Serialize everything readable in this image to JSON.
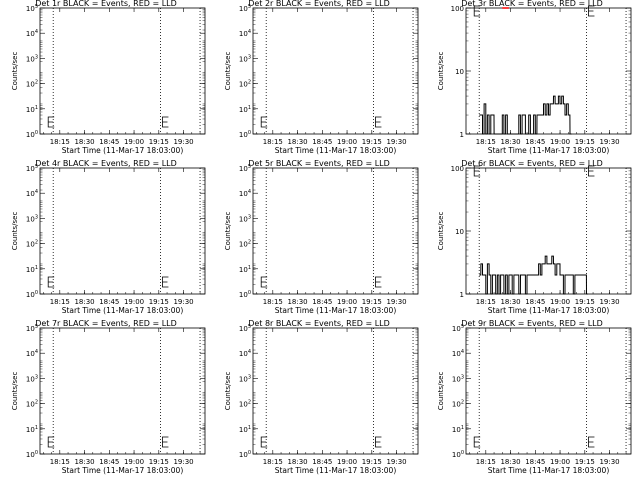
{
  "colors": {
    "background": "#ffffff",
    "axes": "#000000",
    "events": "#000000",
    "lld": "#ff0000"
  },
  "panel_common": {
    "ylabel": "Counts/sec",
    "xlabel": "Start Time (11-Mar-17 18:03:00)",
    "xticks": [
      "18:15",
      "18:30",
      "18:45",
      "19:00",
      "19:15",
      "19:30"
    ]
  },
  "chart_data": [
    {
      "type": "line",
      "title": "Det 1r BLACK = Events, RED = LLD",
      "xlabel": "Start Time (11-Mar-17 18:03:00)",
      "ylabel": "Counts/sec",
      "xlim": [
        "18:03",
        "19:43"
      ],
      "ylim": [
        1,
        10000
      ],
      "yscale": "log",
      "yticks": [
        "10^0",
        "10^1",
        "10^2",
        "10^3",
        "10^4",
        "10^5"
      ],
      "xticks": [
        "18:15",
        "18:30",
        "18:45",
        "19:00",
        "19:15",
        "19:30"
      ],
      "vlines": [
        "18:11",
        "19:16",
        "19:40"
      ],
      "series": [
        {
          "color": "#000000",
          "x": [],
          "values": []
        },
        {
          "color": "#ff0000",
          "x": [],
          "values": []
        }
      ]
    },
    {
      "type": "line",
      "title": "Det 2r BLACK = Events, RED = LLD",
      "xlabel": "Start Time (11-Mar-17 18:03:00)",
      "ylabel": "Counts/sec",
      "xlim": [
        "18:03",
        "19:43"
      ],
      "ylim": [
        1,
        10000
      ],
      "yscale": "log",
      "yticks": [
        "10^0",
        "10^1",
        "10^2",
        "10^3",
        "10^4",
        "10^5"
      ],
      "xticks": [
        "18:15",
        "18:30",
        "18:45",
        "19:00",
        "19:15",
        "19:30"
      ],
      "vlines": [
        "18:11",
        "19:16",
        "19:40"
      ],
      "series": [
        {
          "color": "#000000",
          "x": [],
          "values": []
        },
        {
          "color": "#ff0000",
          "x": [],
          "values": []
        }
      ]
    },
    {
      "type": "line",
      "title": "Det 3r BLACK = Events, RED = LLD",
      "xlabel": "Start Time (11-Mar-17 18:03:00)",
      "ylabel": "Counts/sec",
      "xlim": [
        "18:03",
        "19:43"
      ],
      "ylim": [
        1,
        100
      ],
      "yscale": "log",
      "yticks": [
        "1",
        "10",
        "100"
      ],
      "xticks": [
        "18:15",
        "18:30",
        "18:45",
        "19:00",
        "19:15",
        "19:30"
      ],
      "vlines": [
        "18:11",
        "19:16",
        "19:40"
      ],
      "series": [
        {
          "color": "#000000",
          "x": [
            "18:11",
            "18:12",
            "18:13",
            "18:14",
            "18:15",
            "18:16",
            "18:17",
            "18:18",
            "18:19",
            "18:20",
            "18:24",
            "18:25",
            "18:26",
            "18:27",
            "18:28",
            "18:34",
            "18:35",
            "18:36",
            "18:37",
            "18:38",
            "18:39",
            "18:40",
            "18:41",
            "18:42",
            "18:43",
            "18:44",
            "18:45",
            "18:46",
            "18:47",
            "18:48",
            "18:49",
            "18:50",
            "18:51",
            "18:52",
            "18:53",
            "18:54",
            "18:55",
            "18:56",
            "18:57",
            "18:58",
            "18:59",
            "19:00",
            "19:01",
            "19:02",
            "19:03",
            "19:04",
            "19:05",
            "19:06"
          ],
          "values": [
            2,
            2,
            1,
            3,
            1,
            2,
            1,
            2,
            2,
            1,
            1,
            2,
            1,
            2,
            1,
            1,
            2,
            1,
            2,
            2,
            1,
            1,
            2,
            1,
            1,
            2,
            1,
            2,
            2,
            2,
            2,
            3,
            2,
            3,
            2,
            3,
            3,
            4,
            3,
            3,
            4,
            3,
            4,
            3,
            2,
            3,
            2,
            1
          ]
        },
        {
          "color": "#ff0000",
          "x": [
            "18:25",
            "18:26",
            "18:27",
            "18:28"
          ],
          "values": [
            100,
            100,
            100,
            100
          ]
        }
      ]
    },
    {
      "type": "line",
      "title": "Det 4r BLACK = Events, RED = LLD",
      "xlabel": "Start Time (11-Mar-17 18:03:00)",
      "ylabel": "Counts/sec",
      "xlim": [
        "18:03",
        "19:43"
      ],
      "ylim": [
        1,
        10000
      ],
      "yscale": "log",
      "yticks": [
        "10^0",
        "10^1",
        "10^2",
        "10^3",
        "10^4",
        "10^5"
      ],
      "xticks": [
        "18:15",
        "18:30",
        "18:45",
        "19:00",
        "19:15",
        "19:30"
      ],
      "vlines": [
        "18:11",
        "19:16",
        "19:40"
      ],
      "series": [
        {
          "color": "#000000",
          "x": [],
          "values": []
        },
        {
          "color": "#ff0000",
          "x": [],
          "values": []
        }
      ]
    },
    {
      "type": "line",
      "title": "Det 5r BLACK = Events, RED = LLD",
      "xlabel": "Start Time (11-Mar-17 18:03:00)",
      "ylabel": "Counts/sec",
      "xlim": [
        "18:03",
        "19:43"
      ],
      "ylim": [
        1,
        10000
      ],
      "yscale": "log",
      "yticks": [
        "10^0",
        "10^1",
        "10^2",
        "10^3",
        "10^4",
        "10^5"
      ],
      "xticks": [
        "18:15",
        "18:30",
        "18:45",
        "19:00",
        "19:15",
        "19:30"
      ],
      "vlines": [
        "18:11",
        "19:16",
        "19:40"
      ],
      "series": [
        {
          "color": "#000000",
          "x": [],
          "values": []
        },
        {
          "color": "#ff0000",
          "x": [],
          "values": []
        }
      ]
    },
    {
      "type": "line",
      "title": "Det 6r BLACK = Events, RED = LLD",
      "xlabel": "Start Time (11-Mar-17 18:03:00)",
      "ylabel": "Counts/sec",
      "xlim": [
        "18:03",
        "19:43"
      ],
      "ylim": [
        1,
        100
      ],
      "yscale": "log",
      "yticks": [
        "1",
        "10",
        "100"
      ],
      "xticks": [
        "18:15",
        "18:30",
        "18:45",
        "19:00",
        "19:15",
        "19:30"
      ],
      "vlines": [
        "18:11",
        "19:16",
        "19:40"
      ],
      "series": [
        {
          "color": "#000000",
          "x": [
            "18:11",
            "18:12",
            "18:13",
            "18:14",
            "18:15",
            "18:16",
            "18:17",
            "18:18",
            "18:19",
            "18:20",
            "18:21",
            "18:22",
            "18:23",
            "18:24",
            "18:25",
            "18:26",
            "18:27",
            "18:28",
            "18:29",
            "18:30",
            "18:31",
            "18:32",
            "18:33",
            "18:34",
            "18:35",
            "18:36",
            "18:37",
            "18:38",
            "18:39",
            "18:40",
            "18:41",
            "18:42",
            "18:43",
            "18:44",
            "18:45",
            "18:46",
            "18:47",
            "18:48",
            "18:49",
            "18:50",
            "18:51",
            "18:52",
            "18:53",
            "18:54",
            "18:55",
            "18:56",
            "18:57",
            "18:58",
            "18:59",
            "19:00",
            "19:01",
            "19:02",
            "19:03",
            "19:04",
            "19:05",
            "19:06",
            "19:07",
            "19:08",
            "19:09",
            "19:10",
            "19:11",
            "19:12",
            "19:13",
            "19:14",
            "19:15",
            "19:16"
          ],
          "values": [
            2,
            3,
            2,
            2,
            1,
            3,
            2,
            1,
            2,
            2,
            1,
            2,
            1,
            2,
            2,
            1,
            2,
            1,
            2,
            2,
            1,
            2,
            2,
            2,
            1,
            2,
            2,
            2,
            1,
            2,
            2,
            2,
            2,
            2,
            2,
            2,
            3,
            2,
            3,
            3,
            4,
            3,
            3,
            3,
            4,
            3,
            2,
            3,
            3,
            2,
            2,
            1,
            2,
            2,
            2,
            2,
            2,
            1,
            2,
            2,
            2,
            2,
            2,
            2,
            2,
            1
          ]
        },
        {
          "color": "#ff0000",
          "x": [],
          "values": []
        }
      ]
    },
    {
      "type": "line",
      "title": "Det 7r BLACK = Events, RED = LLD",
      "xlabel": "Start Time (11-Mar-17 18:03:00)",
      "ylabel": "Counts/sec",
      "xlim": [
        "18:03",
        "19:43"
      ],
      "ylim": [
        1,
        10000
      ],
      "yscale": "log",
      "yticks": [
        "10^0",
        "10^1",
        "10^2",
        "10^3",
        "10^4",
        "10^5"
      ],
      "xticks": [
        "18:15",
        "18:30",
        "18:45",
        "19:00",
        "19:15",
        "19:30"
      ],
      "vlines": [
        "18:11",
        "19:16",
        "19:40"
      ],
      "series": [
        {
          "color": "#000000",
          "x": [],
          "values": []
        },
        {
          "color": "#ff0000",
          "x": [],
          "values": []
        }
      ]
    },
    {
      "type": "line",
      "title": "Det 8r BLACK = Events, RED = LLD",
      "xlabel": "Start Time (11-Mar-17 18:03:00)",
      "ylabel": "Counts/sec",
      "xlim": [
        "18:03",
        "19:43"
      ],
      "ylim": [
        1,
        10000
      ],
      "yscale": "log",
      "yticks": [
        "10^0",
        "10^1",
        "10^2",
        "10^3",
        "10^4",
        "10^5"
      ],
      "xticks": [
        "18:15",
        "18:30",
        "18:45",
        "19:00",
        "19:15",
        "19:30"
      ],
      "vlines": [
        "18:11",
        "19:16",
        "19:40"
      ],
      "series": [
        {
          "color": "#000000",
          "x": [],
          "values": []
        },
        {
          "color": "#ff0000",
          "x": [],
          "values": []
        }
      ]
    },
    {
      "type": "line",
      "title": "Det 9r BLACK = Events, RED = LLD",
      "xlabel": "Start Time (11-Mar-17 18:03:00)",
      "ylabel": "Counts/sec",
      "xlim": [
        "18:03",
        "19:43"
      ],
      "ylim": [
        1,
        10000
      ],
      "yscale": "log",
      "yticks": [
        "10^0",
        "10^1",
        "10^2",
        "10^3",
        "10^4",
        "10^5"
      ],
      "xticks": [
        "18:15",
        "18:30",
        "18:45",
        "19:00",
        "19:15",
        "19:30"
      ],
      "vlines": [
        "18:11",
        "19:16",
        "19:40"
      ],
      "series": [
        {
          "color": "#000000",
          "x": [],
          "values": []
        },
        {
          "color": "#ff0000",
          "x": [],
          "values": []
        }
      ]
    }
  ]
}
